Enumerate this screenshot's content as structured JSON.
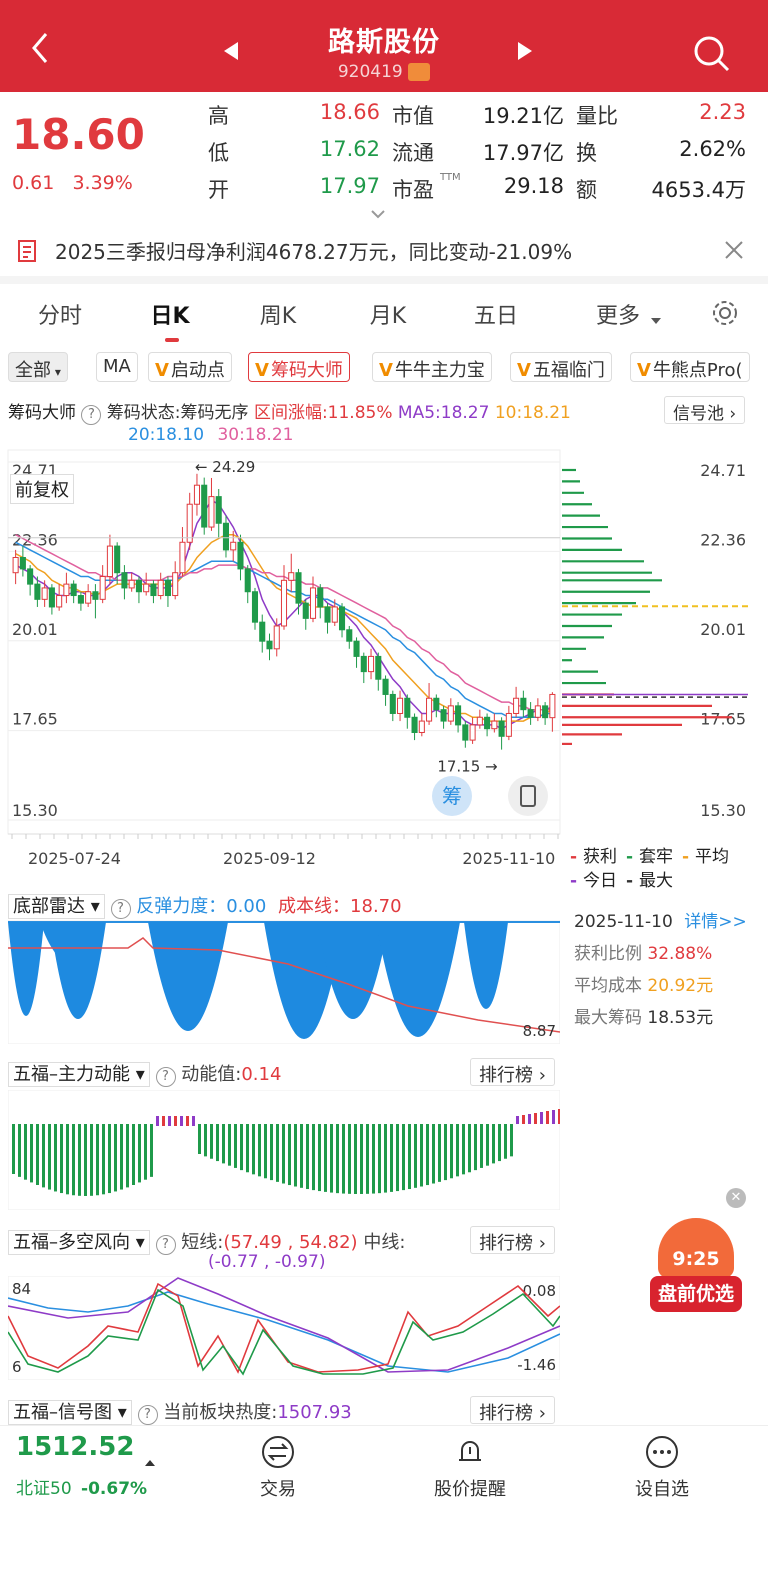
{
  "header": {
    "title": "路斯股份",
    "code": "920419"
  },
  "quote": {
    "price": "18.60",
    "change": "0.61",
    "change_pct": "3.39%",
    "rows": [
      {
        "l1": "高",
        "v1": "18.66",
        "c1": "red",
        "l2": "市值",
        "v2": "19.21亿",
        "l3": "量比",
        "v3": "2.23",
        "c3": "red"
      },
      {
        "l1": "低",
        "v1": "17.62",
        "c1": "green",
        "l2": "流通",
        "v2": "17.97亿",
        "l3": "换",
        "v3": "2.62%",
        "c3": "dark"
      },
      {
        "l1": "开",
        "v1": "17.97",
        "c1": "green",
        "l2": "市盈",
        "v2": "29.18",
        "l3": "额",
        "v3": "4653.4万",
        "c3": "dark"
      }
    ],
    "pe_suffix": "TTM"
  },
  "notice": {
    "text": "2025三季报归母净利润4678.27万元，同比变动-21.09%"
  },
  "tabs": [
    "分时",
    "日K",
    "周K",
    "月K",
    "五日",
    "更多"
  ],
  "chips": [
    "全部",
    "MA",
    "启动点",
    "筹码大师",
    "牛牛主力宝",
    "五福临门",
    "牛熊点Pro("
  ],
  "chip_master": {
    "name": "筹码大师",
    "status": "筹码状态:筹码无序",
    "range": "区间涨幅:11.85%",
    "ma5": "MA5:18.27",
    "ma10": "10:18.21",
    "ma20": "20:18.10",
    "ma30": "30:18.21",
    "pool": "信号池"
  },
  "kchart": {
    "fq": "前复权",
    "y_labels": [
      "24.71",
      "22.36",
      "20.01",
      "17.65",
      "15.30"
    ],
    "x_labels": [
      "2025-07-24",
      "2025-09-12",
      "2025-11-10"
    ],
    "high_mark": "24.29",
    "low_mark": "17.15",
    "chip_btn": "筹"
  },
  "chart_data": {
    "type": "candlestick",
    "title": "",
    "ylim": [
      15.3,
      24.71
    ],
    "x_ticks": [
      "2025-07-24",
      "2025-09-12",
      "2025-11-10"
    ],
    "candles": [
      [
        21.8,
        22.2,
        21.5,
        22.4
      ],
      [
        22.2,
        21.9,
        21.7,
        22.5
      ],
      [
        21.9,
        21.5,
        21.2,
        22.0
      ],
      [
        21.5,
        21.1,
        20.9,
        21.7
      ],
      [
        21.1,
        21.4,
        20.9,
        21.6
      ],
      [
        21.4,
        20.9,
        20.7,
        21.5
      ],
      [
        20.9,
        21.2,
        20.8,
        21.5
      ],
      [
        21.2,
        21.5,
        21.0,
        21.8
      ],
      [
        21.5,
        21.2,
        21.0,
        21.6
      ],
      [
        21.2,
        21.0,
        20.8,
        21.3
      ],
      [
        21.0,
        21.3,
        20.9,
        21.5
      ],
      [
        21.3,
        21.1,
        20.6,
        21.5
      ],
      [
        21.1,
        21.7,
        21.0,
        22.0
      ],
      [
        21.7,
        22.5,
        21.5,
        22.8
      ],
      [
        22.5,
        21.8,
        21.5,
        22.6
      ],
      [
        21.8,
        21.4,
        21.1,
        22.0
      ],
      [
        21.4,
        21.6,
        21.3,
        21.8
      ],
      [
        21.6,
        21.3,
        21.0,
        21.7
      ],
      [
        21.3,
        21.5,
        21.2,
        21.8
      ],
      [
        21.5,
        21.2,
        21.0,
        21.6
      ],
      [
        21.2,
        21.6,
        21.1,
        21.8
      ],
      [
        21.6,
        21.2,
        20.9,
        21.7
      ],
      [
        21.2,
        21.8,
        21.1,
        22.1
      ],
      [
        21.8,
        22.6,
        21.7,
        23.0
      ],
      [
        22.6,
        23.6,
        22.4,
        23.9
      ],
      [
        23.6,
        24.1,
        23.3,
        24.4
      ],
      [
        24.1,
        23.0,
        22.8,
        24.3
      ],
      [
        23.0,
        23.8,
        22.9,
        24.29
      ],
      [
        23.8,
        23.1,
        22.7,
        24.0
      ],
      [
        23.1,
        22.4,
        22.2,
        23.3
      ],
      [
        22.4,
        22.6,
        22.1,
        22.9
      ],
      [
        22.6,
        21.9,
        21.6,
        22.8
      ],
      [
        21.9,
        21.3,
        21.0,
        22.0
      ],
      [
        21.3,
        20.5,
        20.3,
        21.4
      ],
      [
        20.5,
        20.0,
        19.7,
        20.7
      ],
      [
        20.0,
        19.8,
        19.5,
        20.2
      ],
      [
        19.8,
        20.4,
        19.6,
        20.6
      ],
      [
        20.4,
        21.6,
        20.3,
        22.0
      ],
      [
        21.6,
        21.8,
        21.3,
        22.3
      ],
      [
        21.8,
        21.0,
        20.7,
        21.9
      ],
      [
        21.0,
        20.6,
        20.3,
        21.1
      ],
      [
        20.6,
        21.4,
        20.5,
        21.7
      ],
      [
        21.4,
        20.9,
        20.6,
        21.5
      ],
      [
        20.9,
        20.5,
        20.2,
        21.0
      ],
      [
        20.5,
        20.9,
        20.4,
        21.1
      ],
      [
        20.9,
        20.3,
        20.1,
        21.0
      ],
      [
        20.3,
        20.0,
        19.8,
        20.4
      ],
      [
        20.0,
        19.6,
        19.3,
        20.1
      ],
      [
        19.6,
        19.2,
        18.9,
        19.7
      ],
      [
        19.2,
        19.6,
        19.0,
        19.8
      ],
      [
        19.6,
        19.0,
        18.7,
        19.7
      ],
      [
        19.0,
        18.6,
        18.3,
        19.1
      ],
      [
        18.6,
        18.1,
        17.9,
        18.7
      ],
      [
        18.1,
        18.5,
        17.9,
        18.7
      ],
      [
        18.5,
        18.0,
        17.7,
        18.6
      ],
      [
        18.0,
        17.6,
        17.4,
        18.1
      ],
      [
        17.6,
        17.9,
        17.5,
        18.1
      ],
      [
        17.9,
        18.5,
        17.8,
        18.9
      ],
      [
        18.5,
        18.2,
        18.0,
        18.6
      ],
      [
        18.2,
        17.9,
        17.7,
        18.3
      ],
      [
        17.9,
        18.3,
        17.8,
        18.5
      ],
      [
        18.3,
        17.8,
        17.6,
        18.4
      ],
      [
        17.8,
        17.4,
        17.2,
        17.9
      ],
      [
        17.4,
        17.8,
        17.3,
        18.0
      ],
      [
        17.8,
        18.0,
        17.7,
        18.2
      ],
      [
        18.0,
        17.7,
        17.5,
        18.1
      ],
      [
        17.7,
        17.9,
        17.6,
        18.1
      ],
      [
        17.9,
        17.5,
        17.15,
        18.0
      ],
      [
        17.5,
        18.1,
        17.4,
        18.3
      ],
      [
        18.1,
        18.5,
        18.0,
        18.8
      ],
      [
        18.5,
        18.2,
        18.0,
        18.7
      ],
      [
        18.2,
        18.0,
        17.8,
        18.4
      ],
      [
        18.0,
        18.3,
        17.9,
        18.5
      ],
      [
        18.3,
        17.99,
        17.8,
        18.4
      ],
      [
        17.99,
        18.6,
        17.62,
        18.66
      ]
    ],
    "ma_series": [
      {
        "name": "MA5",
        "color": "#8e3bc7",
        "values": [
          22.0,
          21.9,
          21.8,
          21.6,
          21.5,
          21.3,
          21.2,
          21.2,
          21.3,
          21.3,
          21.2,
          21.2,
          21.3,
          21.5,
          21.7,
          21.8,
          21.8,
          21.7,
          21.5,
          21.4,
          21.4,
          21.4,
          21.5,
          21.9,
          22.5,
          23.1,
          23.4,
          23.7,
          23.6,
          23.3,
          23.0,
          22.6,
          22.2,
          21.7,
          21.1,
          20.7,
          20.4,
          20.5,
          20.7,
          20.9,
          21.1,
          21.2,
          21.2,
          21.0,
          20.9,
          20.8,
          20.6,
          20.4,
          20.1,
          19.9,
          19.6,
          19.3,
          19.0,
          18.8,
          18.5,
          18.3,
          18.1,
          18.1,
          18.2,
          18.1,
          18.1,
          18.1,
          17.9,
          17.8,
          17.8,
          17.8,
          17.8,
          17.7,
          17.8,
          17.9,
          18.0,
          18.1,
          18.2,
          18.2,
          18.27
        ]
      },
      {
        "name": "MA10",
        "color": "#f0a020",
        "values": [
          22.3,
          22.2,
          22.1,
          21.9,
          21.8,
          21.6,
          21.5,
          21.4,
          21.4,
          21.3,
          21.3,
          21.2,
          21.3,
          21.4,
          21.5,
          21.5,
          21.5,
          21.5,
          21.5,
          21.5,
          21.5,
          21.5,
          21.5,
          21.7,
          21.9,
          22.2,
          22.4,
          22.6,
          22.7,
          22.8,
          22.8,
          22.7,
          22.5,
          22.2,
          21.9,
          21.6,
          21.4,
          21.3,
          21.2,
          21.1,
          21.0,
          20.9,
          20.9,
          20.9,
          20.9,
          20.8,
          20.7,
          20.6,
          20.4,
          20.2,
          20.0,
          19.8,
          19.5,
          19.3,
          19.1,
          18.9,
          18.7,
          18.5,
          18.4,
          18.3,
          18.2,
          18.1,
          18.1,
          18.0,
          18.0,
          17.9,
          17.9,
          17.9,
          17.9,
          17.9,
          17.9,
          18.0,
          18.0,
          18.1,
          18.21
        ]
      },
      {
        "name": "MA20",
        "color": "#2a8fe0",
        "values": [
          22.6,
          22.5,
          22.4,
          22.3,
          22.2,
          22.1,
          22.0,
          21.9,
          21.8,
          21.7,
          21.7,
          21.6,
          21.6,
          21.6,
          21.6,
          21.6,
          21.6,
          21.6,
          21.6,
          21.6,
          21.6,
          21.6,
          21.6,
          21.7,
          21.8,
          21.9,
          22.0,
          22.1,
          22.1,
          22.1,
          22.1,
          22.0,
          21.9,
          21.8,
          21.7,
          21.6,
          21.5,
          21.4,
          21.3,
          21.3,
          21.2,
          21.2,
          21.1,
          21.1,
          21.0,
          20.9,
          20.8,
          20.7,
          20.6,
          20.5,
          20.4,
          20.3,
          20.1,
          20.0,
          19.8,
          19.7,
          19.5,
          19.3,
          19.1,
          19.0,
          18.8,
          18.7,
          18.5,
          18.4,
          18.3,
          18.2,
          18.1,
          18.1,
          18.0,
          18.0,
          18.0,
          18.0,
          18.0,
          18.1,
          18.1
        ]
      },
      {
        "name": "MA30",
        "color": "#e0609e",
        "values": [
          22.8,
          22.7,
          22.6,
          22.5,
          22.4,
          22.3,
          22.2,
          22.1,
          22.0,
          21.9,
          21.8,
          21.8,
          21.7,
          21.7,
          21.6,
          21.6,
          21.6,
          21.6,
          21.6,
          21.6,
          21.6,
          21.7,
          21.7,
          21.7,
          21.8,
          21.8,
          21.9,
          21.9,
          22.0,
          22.0,
          22.0,
          22.0,
          21.9,
          21.9,
          21.8,
          21.8,
          21.7,
          21.7,
          21.6,
          21.6,
          21.5,
          21.5,
          21.4,
          21.4,
          21.3,
          21.2,
          21.1,
          21.0,
          20.9,
          20.8,
          20.7,
          20.6,
          20.4,
          20.3,
          20.1,
          20.0,
          19.8,
          19.7,
          19.5,
          19.4,
          19.2,
          19.1,
          18.9,
          18.8,
          18.7,
          18.6,
          18.5,
          18.4,
          18.4,
          18.3,
          18.3,
          18.2,
          18.2,
          18.2,
          18.21
        ]
      }
    ]
  },
  "legend": {
    "items": [
      "获利",
      "套牢",
      "平均",
      "今日",
      "最大"
    ],
    "colors": [
      "#e03a3e",
      "#1f9a4a",
      "#f0a020",
      "#8e3bc7",
      "#333333"
    ]
  },
  "chip_info": {
    "date": "2025-11-10",
    "detail": "详情>>",
    "profit_label": "获利比例",
    "profit": "32.88%",
    "avg_label": "平均成本",
    "avg": "20.92元",
    "max_label": "最大筹码",
    "max": "18.53元"
  },
  "radar": {
    "name": "底部雷达",
    "rebound_label": "反弹力度：",
    "rebound": "0.00",
    "cost_label": "成本线：",
    "cost": "18.70",
    "last": "8.87"
  },
  "momentum": {
    "name": "五福–主力动能",
    "value_label": "动能值:",
    "value": "0.14",
    "rank": "排行榜"
  },
  "wind": {
    "name": "五福–多空风向",
    "short_label": "短线:",
    "short": "(57.49 , 54.82)",
    "mid_label": "中线:",
    "mid": "(-0.77 , -0.97)",
    "rank": "排行榜",
    "y_top": "84",
    "y_bottom": "6",
    "r_top": "0.08",
    "r_bottom": "-1.46"
  },
  "signal": {
    "name": "五福–信号图",
    "heat_label": "当前板块热度:",
    "heat": "1507.93",
    "rank": "排行榜"
  },
  "promo": {
    "time": "9:25",
    "text": "盘前优选"
  },
  "bottom": {
    "index_value": "1512.52",
    "index_name": "北证50",
    "index_change": "-0.67%",
    "items": [
      "交易",
      "股价提醒",
      "设自选"
    ]
  }
}
